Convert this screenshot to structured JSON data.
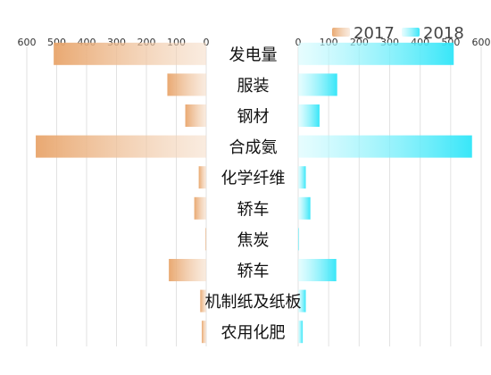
{
  "chart_data": {
    "type": "bar",
    "orientation": "horizontal-butterfly",
    "categories": [
      "发电量",
      "服装",
      "钢材",
      "合成氨",
      "化学纤维",
      "轿车",
      "焦炭",
      "轿车",
      "机制纸及纸板",
      "农用化肥"
    ],
    "series": [
      {
        "name": "2017",
        "values": [
          510,
          130,
          70,
          570,
          25,
          40,
          3,
          125,
          20,
          15
        ],
        "color": "#e8a46a"
      },
      {
        "name": "2018",
        "values": [
          510,
          128,
          70,
          570,
          25,
          40,
          3,
          125,
          25,
          15
        ],
        "color": "#2ee5f8"
      }
    ],
    "axes": {
      "left": {
        "range": [
          600,
          0
        ],
        "ticks": [
          600,
          500,
          400,
          300,
          200,
          100,
          0
        ]
      },
      "right": {
        "range": [
          0,
          600
        ],
        "ticks": [
          0,
          100,
          200,
          300,
          400,
          500,
          600
        ]
      }
    },
    "grid": true,
    "legend_position": "top-right",
    "title": "",
    "xlabel": "",
    "ylabel": ""
  }
}
